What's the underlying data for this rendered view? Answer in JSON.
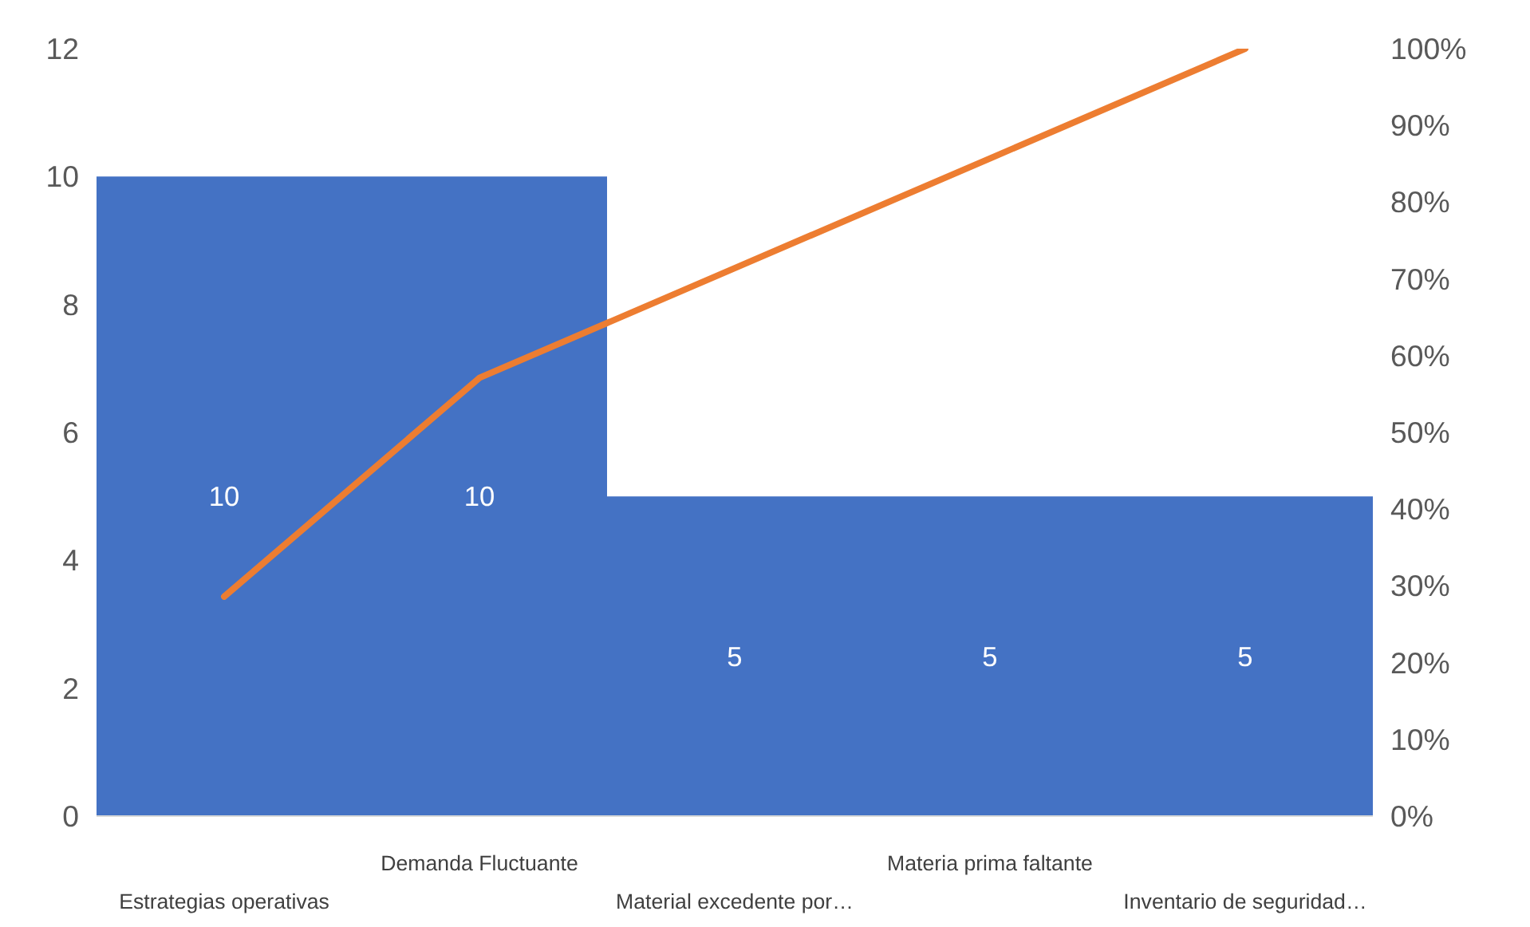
{
  "chart_data": {
    "type": "bar",
    "categories": [
      "Estrategias operativas",
      "Demanda Fluctuante",
      "Material excedente por…",
      "Materia prima faltante",
      "Inventario de seguridad…"
    ],
    "series": [
      {
        "color": "#4472c4",
        "values": [
          10,
          10,
          5,
          5,
          5
        ],
        "value_labels": [
          "10",
          "10",
          "5",
          "5",
          "5"
        ]
      },
      {
        "type": "line",
        "axis": "y2",
        "color": "#ed7d31",
        "values": [
          28.6,
          57.1,
          71.4,
          85.7,
          100
        ]
      }
    ],
    "ylim": [
      0,
      12
    ],
    "yticks": [
      0,
      2,
      4,
      6,
      8,
      10,
      12
    ],
    "y2lim": [
      0,
      100
    ],
    "y2ticks": [
      {
        "value": 0,
        "label": "0%"
      },
      {
        "value": 10,
        "label": "10%"
      },
      {
        "value": 20,
        "label": "20%"
      },
      {
        "value": 30,
        "label": "30%"
      },
      {
        "value": 40,
        "label": "40%"
      },
      {
        "value": 50,
        "label": "50%"
      },
      {
        "value": 60,
        "label": "60%"
      },
      {
        "value": 70,
        "label": "70%"
      },
      {
        "value": 80,
        "label": "80%"
      },
      {
        "value": 90,
        "label": "90%"
      },
      {
        "value": 100,
        "label": "100%"
      }
    ],
    "grid": false
  }
}
